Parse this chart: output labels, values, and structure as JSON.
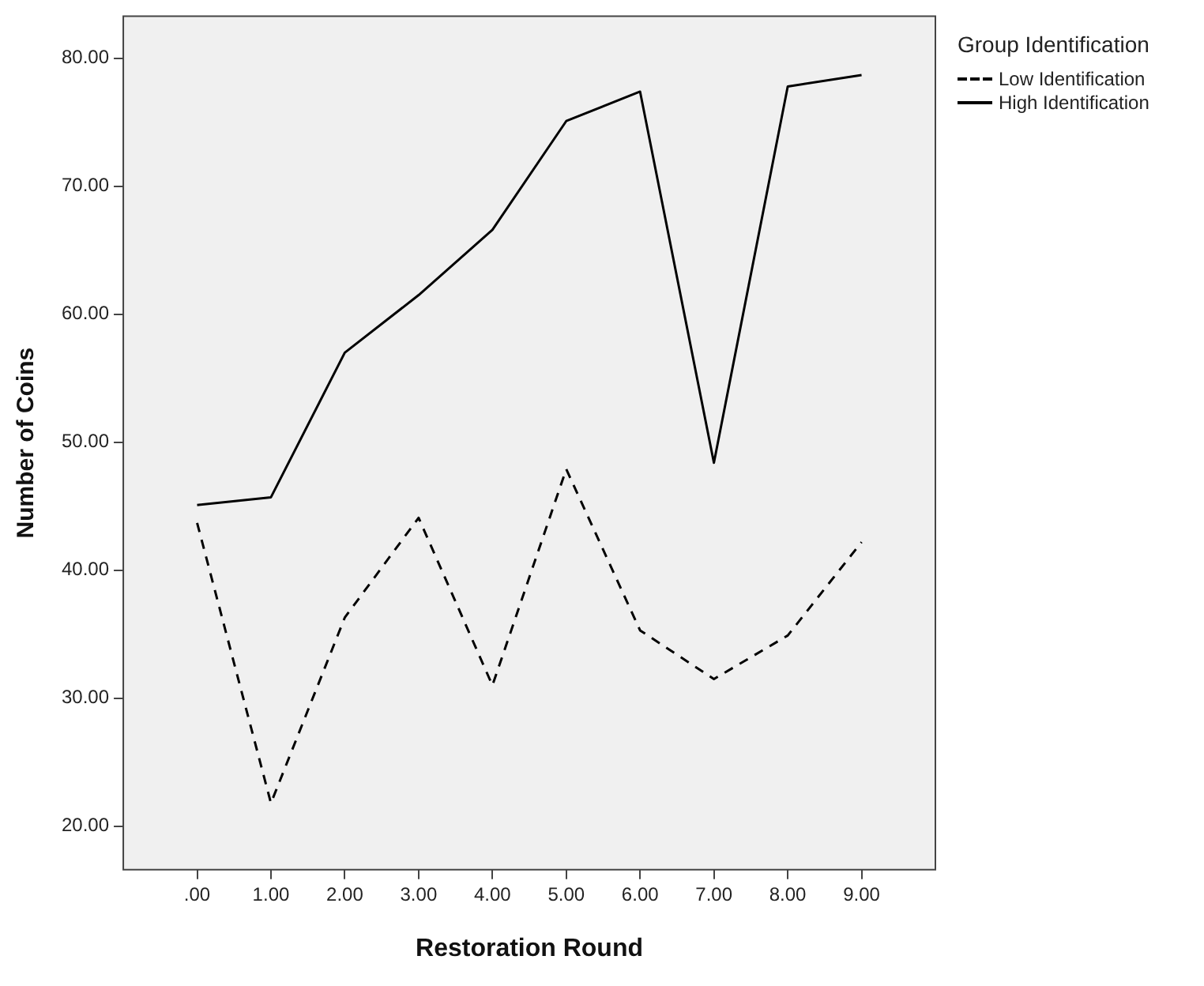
{
  "chart_data": {
    "type": "line",
    "xlabel": "Restoration Round",
    "ylabel": "Number of Coins",
    "legend_title": "Group Identification",
    "x": [
      0,
      1,
      2,
      3,
      4,
      5,
      6,
      7,
      8,
      9
    ],
    "series": [
      {
        "name": "Low Identification",
        "color": "#000000",
        "line_style": "dashed",
        "values": [
          43.7,
          21.8,
          36.3,
          44.1,
          31.0,
          47.9,
          35.3,
          31.5,
          34.9,
          42.2
        ]
      },
      {
        "name": "High Identification",
        "color": "#000000",
        "line_style": "solid",
        "values": [
          45.1,
          45.7,
          57.0,
          61.5,
          66.6,
          75.1,
          77.4,
          48.4,
          77.8,
          78.7
        ]
      }
    ],
    "xlim": [
      -1,
      10
    ],
    "ylim": [
      16.6,
      83.3
    ],
    "xticks": [
      {
        "value": 0,
        "label": ".00"
      },
      {
        "value": 1,
        "label": "1.00"
      },
      {
        "value": 2,
        "label": "2.00"
      },
      {
        "value": 3,
        "label": "3.00"
      },
      {
        "value": 4,
        "label": "4.00"
      },
      {
        "value": 5,
        "label": "5.00"
      },
      {
        "value": 6,
        "label": "6.00"
      },
      {
        "value": 7,
        "label": "7.00"
      },
      {
        "value": 8,
        "label": "8.00"
      },
      {
        "value": 9,
        "label": "9.00"
      }
    ],
    "yticks": [
      {
        "value": 20,
        "label": "20.00"
      },
      {
        "value": 30,
        "label": "30.00"
      },
      {
        "value": 40,
        "label": "40.00"
      },
      {
        "value": 50,
        "label": "50.00"
      },
      {
        "value": 60,
        "label": "60.00"
      },
      {
        "value": 70,
        "label": "70.00"
      },
      {
        "value": 80,
        "label": "80.00"
      }
    ],
    "grid": false,
    "legend": "top right",
    "marker": "none"
  }
}
